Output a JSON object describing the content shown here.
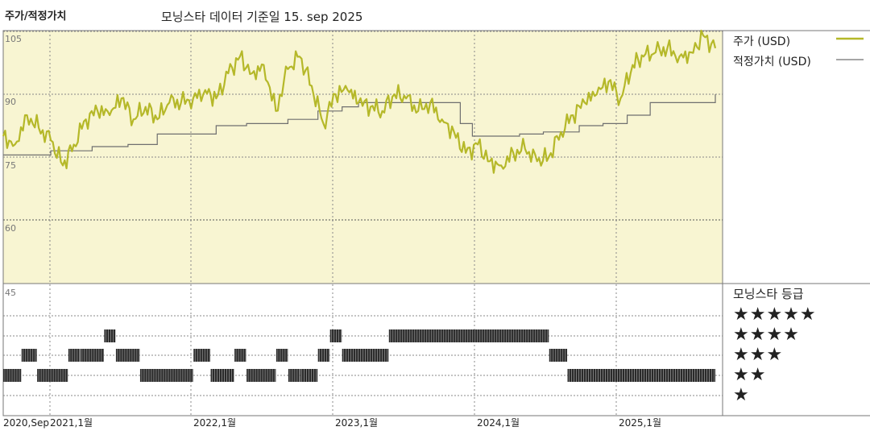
{
  "header": {
    "left_title": "주가/적정가치",
    "source": "모닝스타 데이터 기준일 15. sep 2025"
  },
  "colors": {
    "price": "#b5b829",
    "fair": "#6f6f6f",
    "price_panel": "#f8f5d2",
    "rating_bar": "#2a2a2a"
  },
  "legend": {
    "price": "주가 (USD)",
    "fair": "적정가치 (USD)"
  },
  "rating_panel": {
    "title": "모닝스타 등급",
    "stars": [
      "★★★★★",
      "★★★★",
      "★★★",
      "★★",
      "★"
    ]
  },
  "chart_data": {
    "type": "line",
    "title": "",
    "x_tick_labels": [
      "2020,Sep",
      "2021,1월",
      "2022,1월",
      "2023,1월",
      "2024,1월",
      "2025,1월"
    ],
    "y_tick_labels": [
      "105",
      "90",
      "75",
      "60",
      "45"
    ],
    "ylim": [
      45,
      105
    ],
    "grid": true,
    "legend_position": "right",
    "series": [
      {
        "name": "주가 (USD)",
        "dates": [
          "2020-09-15",
          "2020-10-15",
          "2020-11-15",
          "2020-12-15",
          "2021-01-15",
          "2021-02-15",
          "2021-03-15",
          "2021-04-15",
          "2021-05-15",
          "2021-06-15",
          "2021-07-15",
          "2021-08-15",
          "2021-09-15",
          "2021-10-15",
          "2021-11-15",
          "2021-12-15",
          "2022-01-15",
          "2022-02-15",
          "2022-03-15",
          "2022-04-15",
          "2022-05-15",
          "2022-06-15",
          "2022-07-15",
          "2022-08-15",
          "2022-09-15",
          "2022-10-15",
          "2022-11-15",
          "2022-12-15",
          "2023-01-15",
          "2023-02-15",
          "2023-03-15",
          "2023-04-15",
          "2023-05-15",
          "2023-06-15",
          "2023-07-15",
          "2023-08-15",
          "2023-09-15",
          "2023-10-15",
          "2023-11-15",
          "2023-12-15",
          "2024-01-15",
          "2024-02-15",
          "2024-03-15",
          "2024-04-15",
          "2024-05-15",
          "2024-06-15",
          "2024-07-15",
          "2024-08-15",
          "2024-09-15",
          "2024-10-15",
          "2024-11-15",
          "2024-12-15",
          "2025-01-15",
          "2025-02-15",
          "2025-03-15",
          "2025-04-15",
          "2025-05-15",
          "2025-06-15",
          "2025-07-15",
          "2025-08-15",
          "2025-09-15"
        ],
        "values": [
          80,
          78,
          85,
          82,
          79,
          73,
          78,
          84,
          86,
          85,
          89,
          84,
          87,
          84,
          88,
          88,
          89,
          91,
          89,
          95,
          99,
          95,
          97,
          86,
          96,
          99,
          92,
          83,
          90,
          91,
          88,
          87,
          86,
          90,
          89,
          86,
          88,
          84,
          81,
          76,
          78,
          74,
          73,
          76,
          77,
          74,
          75,
          81,
          85,
          88,
          90,
          93,
          89,
          97,
          99,
          100,
          101,
          99,
          100,
          104,
          101
        ]
      },
      {
        "name": "적정가치 (USD)",
        "dates": [
          "2020-09-15",
          "2021-01-15",
          "2021-05-01",
          "2021-08-01",
          "2021-10-15",
          "2022-03-15",
          "2022-06-01",
          "2022-09-15",
          "2022-12-01",
          "2023-02-01",
          "2023-03-15",
          "2023-12-01",
          "2024-01-01",
          "2024-05-01",
          "2024-07-01",
          "2024-10-01",
          "2024-12-01",
          "2025-02-01",
          "2025-04-01",
          "2025-09-15"
        ],
        "values": [
          75.5,
          76.5,
          77.5,
          78,
          80.5,
          82.5,
          83,
          84,
          86,
          87,
          88,
          83,
          80,
          80.5,
          81,
          82.5,
          83,
          85,
          88,
          90
        ]
      }
    ],
    "rating_levels": [
      "★★★★★",
      "★★★★",
      "★★★",
      "★★",
      "★"
    ],
    "rating_history": [
      {
        "start": "2020-09-15",
        "end": "2020-10-31",
        "stars": 2
      },
      {
        "start": "2020-11-01",
        "end": "2020-12-10",
        "stars": 3
      },
      {
        "start": "2020-12-11",
        "end": "2021-02-28",
        "stars": 2
      },
      {
        "start": "2021-03-01",
        "end": "2021-03-31",
        "stars": 3
      },
      {
        "start": "2021-04-01",
        "end": "2021-05-31",
        "stars": 3
      },
      {
        "start": "2021-06-01",
        "end": "2021-06-30",
        "stars": 4
      },
      {
        "start": "2021-07-01",
        "end": "2021-08-31",
        "stars": 3
      },
      {
        "start": "2021-09-01",
        "end": "2022-01-15",
        "stars": 2
      },
      {
        "start": "2022-01-16",
        "end": "2022-02-28",
        "stars": 3
      },
      {
        "start": "2022-03-01",
        "end": "2022-04-30",
        "stars": 2
      },
      {
        "start": "2022-05-01",
        "end": "2022-05-31",
        "stars": 3
      },
      {
        "start": "2022-06-01",
        "end": "2022-08-15",
        "stars": 2
      },
      {
        "start": "2022-08-16",
        "end": "2022-09-15",
        "stars": 3
      },
      {
        "start": "2022-09-16",
        "end": "2022-10-15",
        "stars": 2
      },
      {
        "start": "2022-10-16",
        "end": "2022-11-30",
        "stars": 2
      },
      {
        "start": "2022-12-01",
        "end": "2022-12-31",
        "stars": 3
      },
      {
        "start": "2023-01-01",
        "end": "2023-01-31",
        "stars": 4
      },
      {
        "start": "2023-02-01",
        "end": "2023-05-31",
        "stars": 3
      },
      {
        "start": "2023-06-01",
        "end": "2024-07-15",
        "stars": 4
      },
      {
        "start": "2024-07-16",
        "end": "2024-08-31",
        "stars": 3
      },
      {
        "start": "2024-09-01",
        "end": "2025-09-15",
        "stars": 2
      }
    ]
  }
}
